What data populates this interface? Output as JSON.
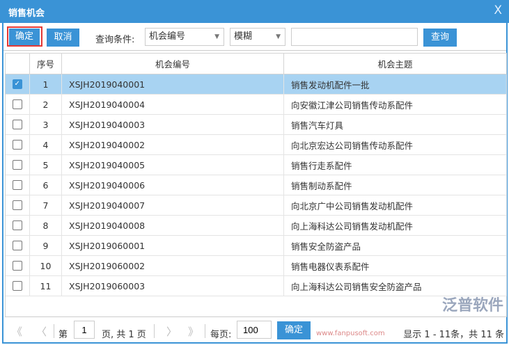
{
  "dialog": {
    "title": "销售机会",
    "close": "X"
  },
  "toolbar": {
    "confirm": "确定",
    "cancel": "取消",
    "query_label": "查询条件:",
    "field_select": "机会编号",
    "match_select": "模糊",
    "search_value": "",
    "search_button": "查询"
  },
  "table": {
    "headers": [
      "",
      "序号",
      "机会编号",
      "机会主题"
    ],
    "rows": [
      {
        "checked": true,
        "no": "1",
        "code": "XSJH2019040001",
        "subject": "销售发动机配件一批"
      },
      {
        "checked": false,
        "no": "2",
        "code": "XSJH2019040004",
        "subject": "向安徽江津公司销售传动系配件"
      },
      {
        "checked": false,
        "no": "3",
        "code": "XSJH2019040003",
        "subject": "销售汽车灯具"
      },
      {
        "checked": false,
        "no": "4",
        "code": "XSJH2019040002",
        "subject": "向北京宏达公司销售传动系配件"
      },
      {
        "checked": false,
        "no": "5",
        "code": "XSJH2019040005",
        "subject": "销售行走系配件"
      },
      {
        "checked": false,
        "no": "6",
        "code": "XSJH2019040006",
        "subject": "销售制动系配件"
      },
      {
        "checked": false,
        "no": "7",
        "code": "XSJH2019040007",
        "subject": "向北京广中公司销售发动机配件"
      },
      {
        "checked": false,
        "no": "8",
        "code": "XSJH2019040008",
        "subject": "向上海科达公司销售发动机配件"
      },
      {
        "checked": false,
        "no": "9",
        "code": "XSJH2019060001",
        "subject": "销售安全防盗产品"
      },
      {
        "checked": false,
        "no": "10",
        "code": "XSJH2019060002",
        "subject": "销售电器仪表系配件"
      },
      {
        "checked": false,
        "no": "11",
        "code": "XSJH2019060003",
        "subject": "向上海科达公司销售安全防盗产品"
      }
    ]
  },
  "pager": {
    "first": "《",
    "prev": "〈",
    "page_prefix": "第",
    "page": "1",
    "page_suffix": "页, 共 1 页",
    "next": "〉",
    "last": "》",
    "per_page_label": "每页:",
    "per_page": "100",
    "confirm": "确定",
    "summary": "显示 1 - 11条，共 11 条"
  },
  "watermark": {
    "brand": "泛普软件",
    "url": "www.fanpusoft.com"
  },
  "colors": {
    "primary": "#3a93d6",
    "selected_row": "#a8d3f2",
    "highlight_border": "#e53935"
  }
}
